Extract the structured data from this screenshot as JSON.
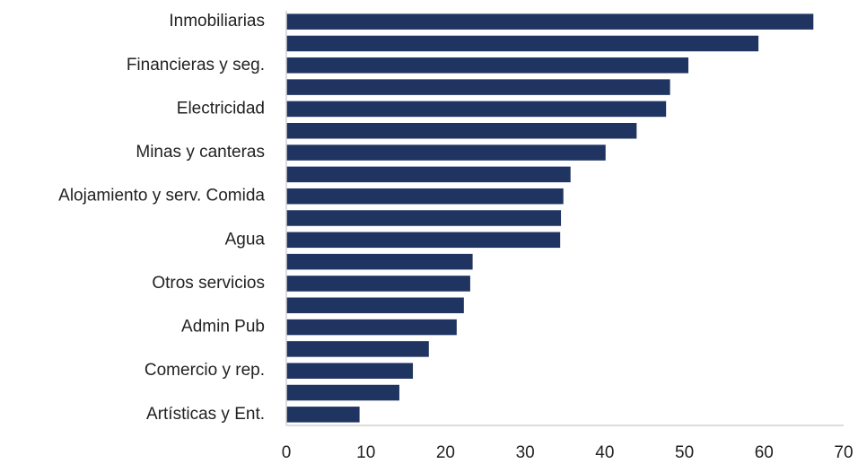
{
  "chart_data": {
    "type": "bar",
    "orientation": "horizontal",
    "categories": [
      "Inmobiliarias",
      null,
      "Financieras y seg.",
      null,
      "Electricidad",
      null,
      "Minas y canteras",
      null,
      "Alojamiento y serv. Comida",
      null,
      "Agua",
      null,
      "Otros servicios",
      null,
      "Admin Pub",
      null,
      "Comercio y rep.",
      null,
      "Artísticas y Ent."
    ],
    "values": [
      66.2,
      59.3,
      50.5,
      48.2,
      47.7,
      44.0,
      40.1,
      35.7,
      34.8,
      34.5,
      34.4,
      23.4,
      23.1,
      22.3,
      21.4,
      17.9,
      15.9,
      14.2,
      9.2
    ],
    "color": "#1f3461",
    "xlim": [
      0,
      70
    ],
    "xticks": [
      0,
      10,
      20,
      30,
      40,
      50,
      60,
      70
    ],
    "grid": false
  }
}
